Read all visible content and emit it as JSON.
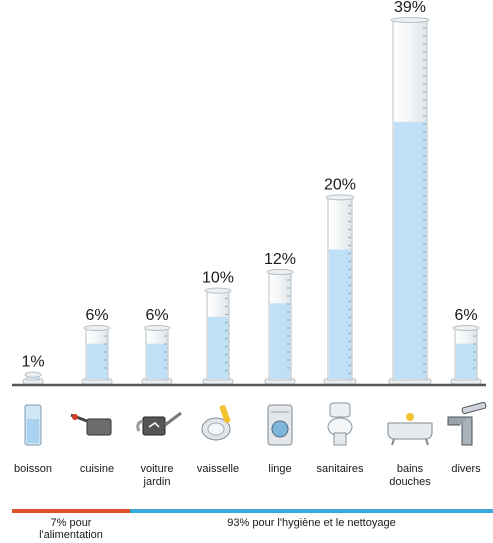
{
  "chart_data": {
    "type": "bar",
    "unit": "%",
    "categories": [
      {
        "lines": [
          "boisson"
        ],
        "icon": "glass-icon"
      },
      {
        "lines": [
          "cuisine"
        ],
        "icon": "cooking-pot-icon"
      },
      {
        "lines": [
          "voiture",
          "jardin"
        ],
        "icon": "watering-can-icon"
      },
      {
        "lines": [
          "vaisselle"
        ],
        "icon": "dish-sponge-icon"
      },
      {
        "lines": [
          "linge"
        ],
        "icon": "washing-machine-icon"
      },
      {
        "lines": [
          "sanitaires"
        ],
        "icon": "toilet-icon"
      },
      {
        "lines": [
          "bains",
          "douches"
        ],
        "icon": "bathtub-icon"
      },
      {
        "lines": [
          "divers"
        ],
        "icon": "faucet-icon"
      }
    ],
    "values": [
      1,
      6,
      6,
      10,
      12,
      20,
      39,
      6
    ],
    "value_labels": [
      "1%",
      "6%",
      "6%",
      "10%",
      "12%",
      "20%",
      "39%",
      "6%"
    ],
    "ylim": [
      0,
      39
    ],
    "groups": [
      {
        "lines": [
          "7% pour",
          "l'alimentation"
        ],
        "from": 0,
        "to": 1,
        "color": "#e0502a"
      },
      {
        "lines": [
          "93% pour l'hygiène et le nettoyage"
        ],
        "from": 2,
        "to": 7,
        "color": "#3aa7dd"
      }
    ],
    "colors": {
      "liquid": "#bfe0f6",
      "glass_outline": "#b7c0c6",
      "baseline": "#555555"
    }
  }
}
